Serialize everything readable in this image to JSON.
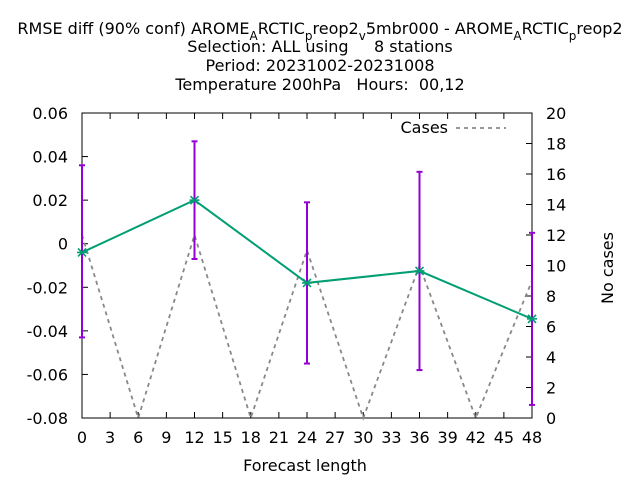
{
  "title": {
    "line1_pre": "RMSE diff (90% conf) AROME",
    "line1_sub1": "A",
    "line1_mid1": "RCTIC",
    "line1_sub2": "p",
    "line1_mid2": "reop2",
    "line1_sub3": "v",
    "line1_mid3": "5mbr000 - AROME",
    "line1_sub4": "A",
    "line1_mid4": "RCTIC",
    "line1_sub5": "p",
    "line1_end": "reop2",
    "line2": "Selection: ALL using     8 stations",
    "line3": "Period: 20231002-20231008",
    "line4": "Temperature 200hPa   Hours:  00,12"
  },
  "chart_data": {
    "type": "line",
    "xlabel": "Forecast length",
    "ylabel": "",
    "y2label": "No cases",
    "xlim": [
      0,
      48
    ],
    "ylim": [
      -0.08,
      0.06
    ],
    "y2lim": [
      0,
      20
    ],
    "xticks": [
      "0",
      "3",
      "6",
      "9",
      "12",
      "15",
      "18",
      "21",
      "24",
      "27",
      "30",
      "33",
      "36",
      "39",
      "42",
      "45",
      "48"
    ],
    "yticks": [
      "0.06",
      "0.04",
      "0.02",
      "0",
      "-0.02",
      "-0.04",
      "-0.06",
      "-0.08"
    ],
    "y2ticks": [
      "20",
      "18",
      "16",
      "14",
      "12",
      "10",
      "8",
      "6",
      "4",
      "2",
      "0"
    ],
    "grid": false,
    "legend_position": "top-right",
    "series": [
      {
        "kind": "rmse_diff",
        "color": "#009e73",
        "x": [
          0,
          12,
          24,
          36,
          48
        ],
        "y": [
          -0.004,
          0.02,
          -0.018,
          -0.0125,
          -0.0345
        ]
      },
      {
        "kind": "confidence_interval",
        "color": "#9400d3",
        "x": [
          0,
          12,
          24,
          36,
          48
        ],
        "low": [
          -0.043,
          -0.007,
          -0.055,
          -0.058,
          -0.074
        ],
        "high": [
          0.036,
          0.047,
          0.019,
          0.033,
          0.005
        ]
      },
      {
        "name": "Cases",
        "axis": "y2",
        "color": "#888888",
        "dash": "dashed",
        "x": [
          0,
          6,
          12,
          18,
          24,
          30,
          36,
          42,
          48
        ],
        "y": [
          12,
          0,
          12,
          0,
          11,
          0,
          10,
          0,
          9
        ]
      }
    ]
  }
}
